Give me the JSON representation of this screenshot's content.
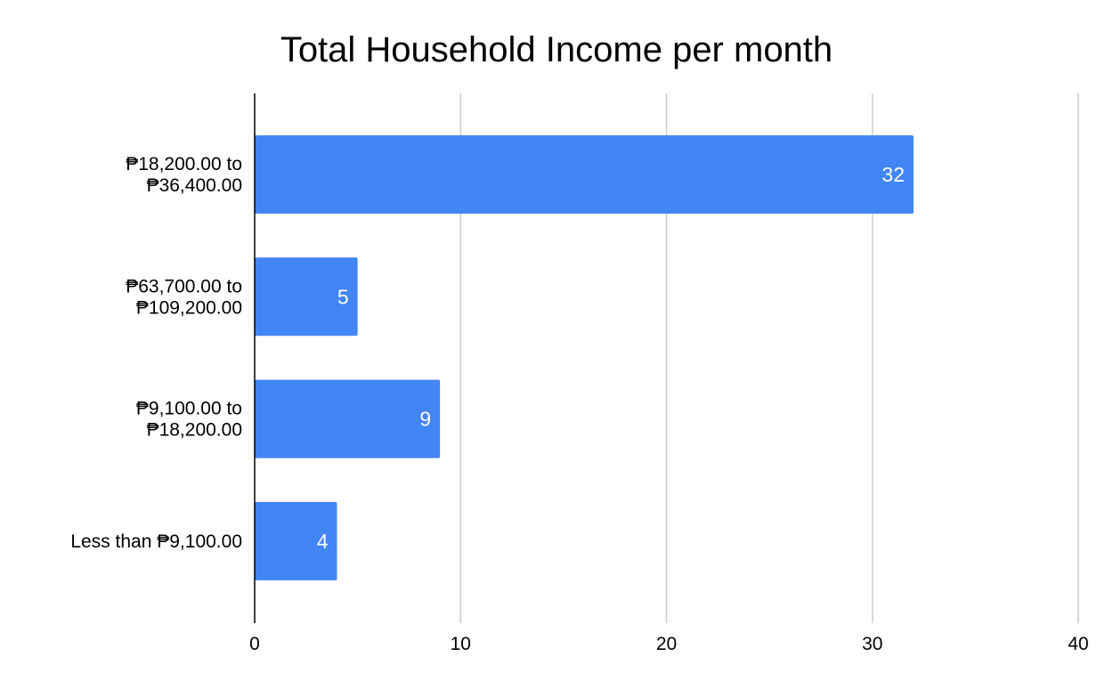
{
  "chart_data": {
    "type": "bar",
    "orientation": "horizontal",
    "title": "Total Household Income per month",
    "xlabel": "",
    "ylabel": "",
    "categories": [
      [
        "₱18,200.00 to",
        "₱36,400.00"
      ],
      [
        "₱63,700.00 to",
        "₱109,200.00"
      ],
      [
        "₱9,100.00 to",
        "₱18,200.00"
      ],
      [
        "Less than ₱9,100.00"
      ]
    ],
    "values": [
      32,
      5,
      9,
      4
    ],
    "data_labels": [
      "32",
      "5",
      "9",
      "4"
    ],
    "xlim": [
      0,
      40
    ],
    "xticks": [
      0,
      10,
      20,
      30,
      40
    ],
    "grid": true,
    "legend": "none",
    "colors": {
      "bar": "#4285f4",
      "grid": "#cccccc",
      "axis": "#000000",
      "data_label": "#ffffff"
    }
  }
}
